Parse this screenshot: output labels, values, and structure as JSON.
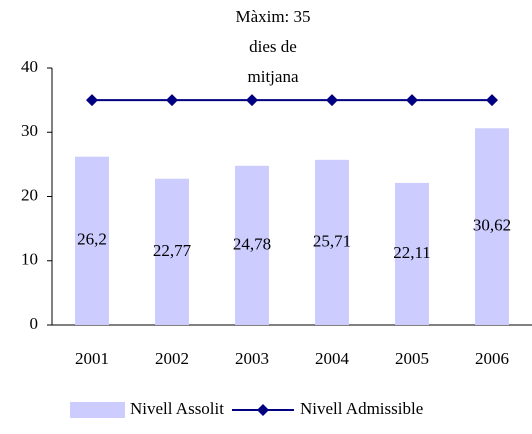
{
  "chart_data": {
    "type": "bar_line",
    "annotation": [
      "Màxim: 35",
      "dies de",
      "mitjana"
    ],
    "categories": [
      "2001",
      "2002",
      "2003",
      "2004",
      "2005",
      "2006"
    ],
    "series": [
      {
        "name": "Nivell Assolit",
        "type": "bar",
        "color": "#ccccff",
        "values": [
          26.2,
          22.77,
          24.78,
          25.71,
          22.11,
          30.62
        ],
        "value_labels": [
          "26,2",
          "22,77",
          "24,78",
          "25,71",
          "22,11",
          "30,62"
        ]
      },
      {
        "name": "Nivell Admissible",
        "type": "line",
        "color": "#000080",
        "values": [
          35,
          35,
          35,
          35,
          35,
          35
        ]
      }
    ],
    "ylim": [
      0,
      40
    ],
    "yticks": [
      0,
      10,
      20,
      30,
      40
    ],
    "grid": false,
    "legend": "bottom"
  }
}
